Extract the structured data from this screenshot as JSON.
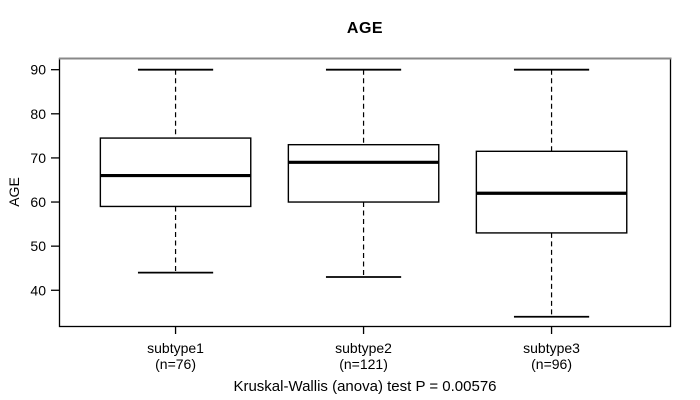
{
  "title": "AGE",
  "y_axis_label": "AGE",
  "annotation": "Kruskal-Wallis (anova) test P = 0.00576",
  "chart_data": {
    "type": "boxplot",
    "title": "AGE",
    "xlabel": "",
    "ylabel": "AGE",
    "annotation": "Kruskal-Wallis (anova) test P = 0.00576",
    "test": "Kruskal-Wallis (anova)",
    "p_value": 0.00576,
    "y_ticks": [
      40,
      50,
      60,
      70,
      80,
      90
    ],
    "ylim": [
      31.9,
      92.65
    ],
    "xlim": [
      0.38,
      3.63
    ],
    "grid": false,
    "legend": false,
    "box_width": 0.8,
    "cap_width": 0.4,
    "categories": [
      "subtype1",
      "subtype2",
      "subtype3"
    ],
    "groups": [
      {
        "label": "subtype1",
        "n_label": "(n=76)",
        "n": 76,
        "x": 1,
        "whisker_low": 44,
        "q1": 59,
        "median": 66,
        "q3": 74.5,
        "whisker_high": 90
      },
      {
        "label": "subtype2",
        "n_label": "(n=121)",
        "n": 121,
        "x": 2,
        "whisker_low": 43,
        "q1": 60,
        "median": 69,
        "q3": 73,
        "whisker_high": 90
      },
      {
        "label": "subtype3",
        "n_label": "(n=96)",
        "n": 96,
        "x": 3,
        "whisker_low": 34,
        "q1": 53,
        "median": 62,
        "q3": 71.5,
        "whisker_high": 90
      }
    ],
    "colors": {
      "line": "#000000",
      "box_fill": "#ffffff",
      "background": "#ffffff",
      "frame_top": "#888888"
    }
  }
}
